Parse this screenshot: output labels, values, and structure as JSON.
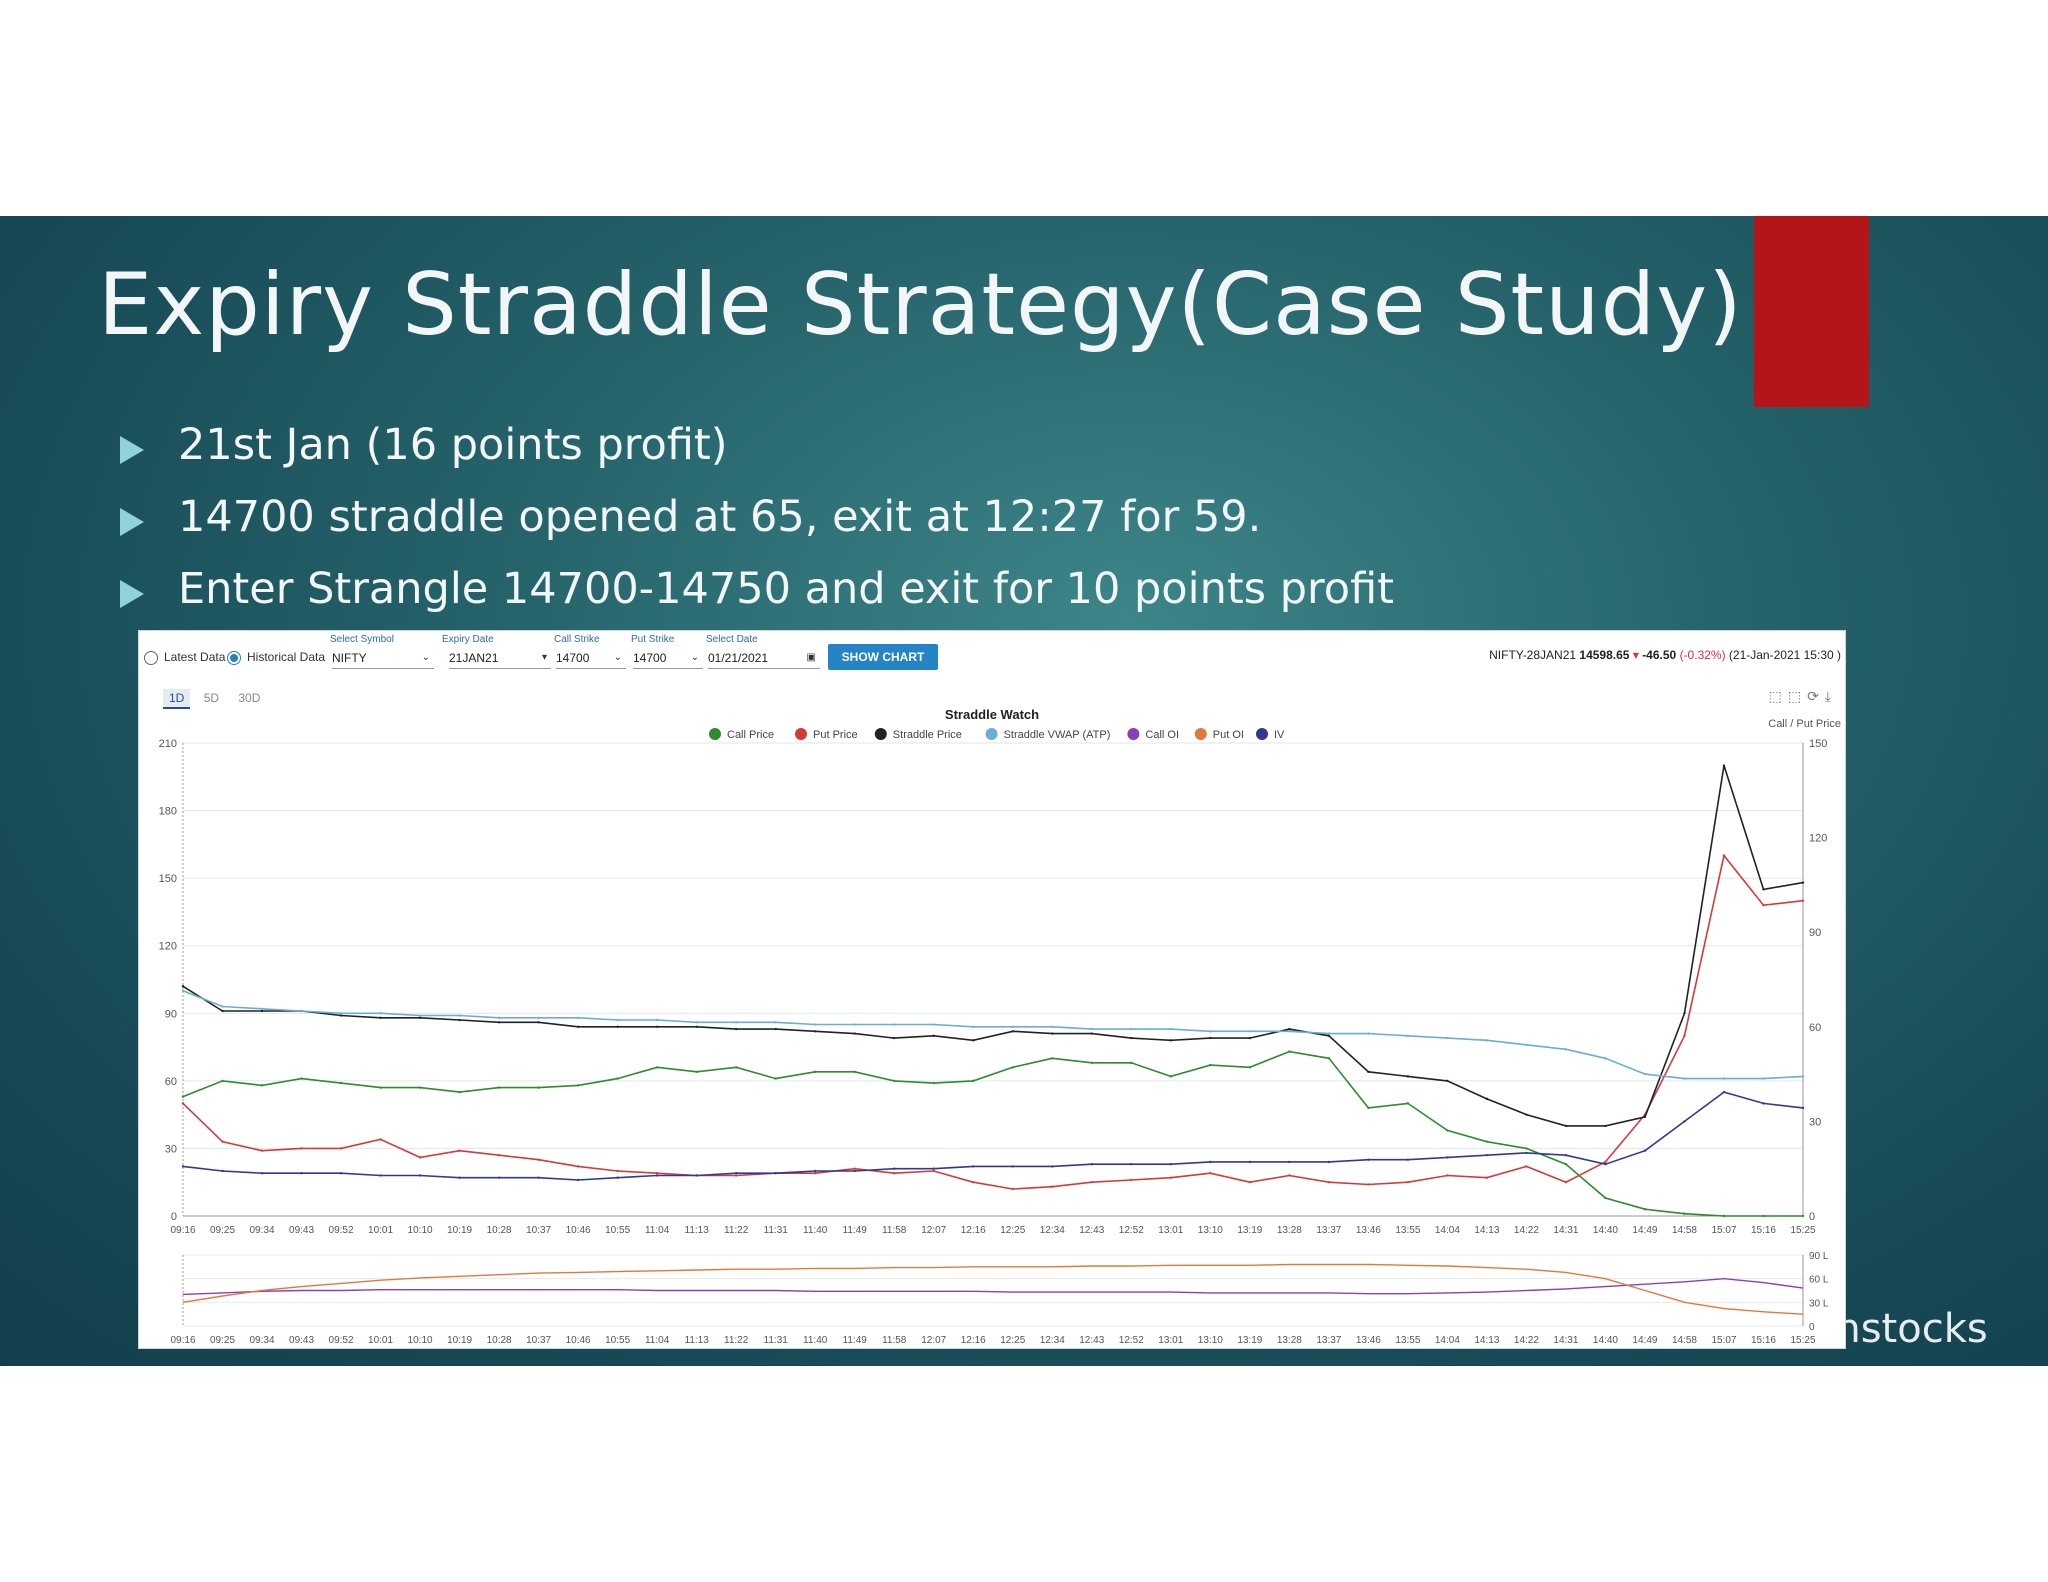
{
  "slide": {
    "title": "Expiry Straddle Strategy(Case Study)",
    "bullets": [
      "21st Jan (16 points profit)",
      "14700 straddle opened at 65, exit at 12:27 for 59.",
      "Enter Strangle 14700-14750 and exit for 10 points profit"
    ],
    "watermark": "ashstocks",
    "accent_color": "#b31518"
  },
  "controls": {
    "latest_label": "Latest Data",
    "historical_label": "Historical Data",
    "symbol_label": "Select Symbol",
    "symbol_value": "NIFTY",
    "expiry_label": "Expiry Date",
    "expiry_value": "21JAN21",
    "call_label": "Call Strike",
    "call_value": "14700",
    "put_label": "Put Strike",
    "put_value": "14700",
    "date_label": "Select Date",
    "date_value": "01/21/2021",
    "button": "SHOW CHART",
    "ticker_name": "NIFTY-28JAN21",
    "ticker_price": "14598.65",
    "ticker_change": "-46.50",
    "ticker_pct": "(-0.32%)",
    "ticker_time": "(21-Jan-2021 15:30 )",
    "ranges": [
      "1D",
      "5D",
      "30D"
    ]
  },
  "chart_data": [
    {
      "type": "line",
      "title": "Straddle Watch",
      "y2label": "Call / Put Price",
      "x": [
        "09:16",
        "09:25",
        "09:34",
        "09:43",
        "09:52",
        "10:01",
        "10:10",
        "10:19",
        "10:28",
        "10:37",
        "10:46",
        "10:55",
        "11:04",
        "11:13",
        "11:22",
        "11:31",
        "11:40",
        "11:49",
        "11:58",
        "12:07",
        "12:16",
        "12:25",
        "12:34",
        "12:43",
        "12:52",
        "13:01",
        "13:10",
        "13:19",
        "13:28",
        "13:37",
        "13:46",
        "13:55",
        "14:04",
        "14:13",
        "14:22",
        "14:31",
        "14:40",
        "14:49",
        "14:58",
        "15:07",
        "15:16",
        "15:25"
      ],
      "yticks": [
        0,
        30,
        60,
        90,
        120,
        150,
        180,
        210
      ],
      "ylim": [
        0,
        210
      ],
      "y2ticks": [
        0,
        30,
        60,
        90,
        120,
        150
      ],
      "y2lim": [
        0,
        150
      ],
      "legend_position": "top-center",
      "series": [
        {
          "name": "Call Price",
          "color": "#2e8b2e",
          "axis": "left",
          "values": [
            53,
            60,
            58,
            61,
            59,
            57,
            57,
            55,
            57,
            57,
            58,
            61,
            66,
            64,
            66,
            61,
            64,
            64,
            60,
            59,
            60,
            66,
            70,
            68,
            68,
            62,
            67,
            66,
            73,
            70,
            48,
            50,
            38,
            33,
            30,
            23,
            8,
            3,
            1,
            0,
            0,
            0
          ]
        },
        {
          "name": "Put Price",
          "color": "#d13b3b",
          "axis": "left",
          "values": [
            50,
            33,
            29,
            30,
            30,
            34,
            26,
            29,
            27,
            25,
            22,
            20,
            19,
            18,
            18,
            19,
            19,
            21,
            19,
            20,
            15,
            12,
            13,
            15,
            16,
            17,
            19,
            15,
            18,
            15,
            14,
            15,
            18,
            17,
            22,
            15,
            24,
            45,
            80,
            160,
            138,
            140
          ]
        },
        {
          "name": "Straddle Price",
          "color": "#222222",
          "axis": "left",
          "values": [
            102,
            91,
            91,
            91,
            89,
            88,
            88,
            87,
            86,
            86,
            84,
            84,
            84,
            84,
            83,
            83,
            82,
            81,
            79,
            80,
            78,
            82,
            81,
            81,
            79,
            78,
            79,
            79,
            83,
            80,
            64,
            62,
            60,
            52,
            45,
            40,
            40,
            44,
            90,
            200,
            145,
            148
          ]
        },
        {
          "name": "Straddle VWAP (ATP)",
          "color": "#6aaed0",
          "axis": "left",
          "values": [
            100,
            93,
            92,
            91,
            90,
            90,
            89,
            89,
            88,
            88,
            88,
            87,
            87,
            86,
            86,
            86,
            85,
            85,
            85,
            85,
            84,
            84,
            84,
            83,
            83,
            83,
            82,
            82,
            82,
            81,
            81,
            80,
            79,
            78,
            76,
            74,
            70,
            63,
            61,
            61,
            61,
            62
          ]
        },
        {
          "name": "Call OI",
          "color": "#8a3fb5",
          "axis": "oi",
          "values": [
            40,
            42,
            44,
            45,
            45,
            46,
            46,
            46,
            46,
            46,
            46,
            46,
            45,
            45,
            45,
            45,
            44,
            44,
            44,
            44,
            44,
            43,
            43,
            43,
            43,
            43,
            42,
            42,
            42,
            42,
            41,
            41,
            42,
            43,
            45,
            47,
            50,
            53,
            56,
            60,
            55,
            48
          ]
        },
        {
          "name": "Put OI",
          "color": "#e07a3c",
          "axis": "oi",
          "values": [
            30,
            38,
            45,
            50,
            54,
            58,
            61,
            63,
            65,
            67,
            68,
            69,
            70,
            71,
            72,
            72,
            73,
            73,
            74,
            74,
            75,
            75,
            75,
            76,
            76,
            77,
            77,
            77,
            78,
            78,
            78,
            77,
            76,
            74,
            72,
            68,
            60,
            45,
            30,
            22,
            18,
            15
          ]
        },
        {
          "name": "IV",
          "color": "#2f3a8f",
          "axis": "left",
          "values": [
            22,
            20,
            19,
            19,
            19,
            18,
            18,
            17,
            17,
            17,
            16,
            17,
            18,
            18,
            19,
            19,
            20,
            20,
            21,
            21,
            22,
            22,
            22,
            23,
            23,
            23,
            24,
            24,
            24,
            24,
            25,
            25,
            26,
            27,
            28,
            27,
            23,
            29,
            42,
            55,
            50,
            48
          ]
        }
      ]
    },
    {
      "type": "line",
      "title": "",
      "x": [
        "09:16",
        "09:25",
        "09:34",
        "09:43",
        "09:52",
        "10:01",
        "10:10",
        "10:19",
        "10:28",
        "10:37",
        "10:46",
        "10:55",
        "11:04",
        "11:13",
        "11:22",
        "11:31",
        "11:40",
        "11:49",
        "11:58",
        "12:07",
        "12:16",
        "12:25",
        "12:34",
        "12:43",
        "12:52",
        "13:01",
        "13:10",
        "13:19",
        "13:28",
        "13:37",
        "13:46",
        "13:55",
        "14:04",
        "14:13",
        "14:22",
        "14:31",
        "14:40",
        "14:49",
        "14:58",
        "15:07",
        "15:16",
        "15:25"
      ],
      "yticks": [
        "0",
        "30 L",
        "60 L",
        "90 L"
      ],
      "ylim": [
        0,
        90
      ]
    }
  ]
}
